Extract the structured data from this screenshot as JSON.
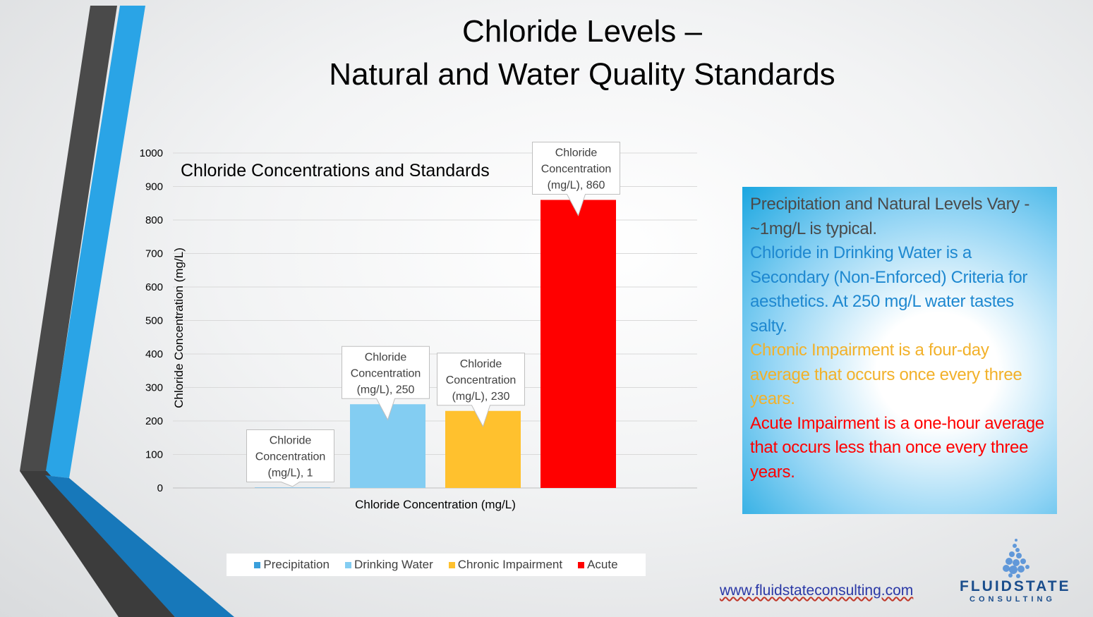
{
  "slide": {
    "title_line1": "Chloride Levels –",
    "title_line2": "Natural and Water Quality Standards"
  },
  "chart_data": {
    "type": "bar",
    "title": "Chloride Concentrations and Standards",
    "xlabel": "Chloride Concentration (mg/L)",
    "ylabel": "Chloride Concentration (mg/L)",
    "ylim": [
      0,
      1000
    ],
    "y_ticks": [
      "0",
      "100",
      "200",
      "300",
      "400",
      "500",
      "600",
      "700",
      "800",
      "900",
      "1000"
    ],
    "grid": true,
    "legend_position": "bottom",
    "series": [
      {
        "name": "Precipitation",
        "value": 1,
        "color": "#3a9fdb",
        "label_lines": [
          "Chloride",
          "Concentration",
          "(mg/L), 1"
        ]
      },
      {
        "name": "Drinking Water",
        "value": 250,
        "color": "#83cdf2",
        "label_lines": [
          "Chloride",
          "Concentration",
          "(mg/L), 250"
        ]
      },
      {
        "name": "Chronic Impairment",
        "value": 230,
        "color": "#ffc12e",
        "label_lines": [
          "Chloride",
          "Concentration",
          "(mg/L), 230"
        ]
      },
      {
        "name": "Acute",
        "value": 860,
        "color": "#ff0000",
        "label_lines": [
          "Chloride",
          "Concentration",
          "(mg/L), 860"
        ]
      }
    ]
  },
  "info_box": {
    "paragraphs": [
      {
        "text": "Precipitation and Natural Levels Vary - ~1mg/L is typical.",
        "color": "#4a4a4a"
      },
      {
        "text": "Chloride in Drinking Water is a Secondary (Non-Enforced) Criteria for aesthetics. At 250 mg/L water tastes salty.",
        "color": "#1e88d0"
      },
      {
        "text": "Chronic Impairment is a four-day average that occurs once every three years.",
        "color": "#f2b12a"
      },
      {
        "text": "Acute Impairment is a one-hour average that occurs less than once every three years.",
        "color": "#ff0000"
      }
    ]
  },
  "footer": {
    "website": "www.fluidstateconsulting.com",
    "logo_name": "FLUIDSTATE",
    "logo_sub": "CONSULTING"
  }
}
